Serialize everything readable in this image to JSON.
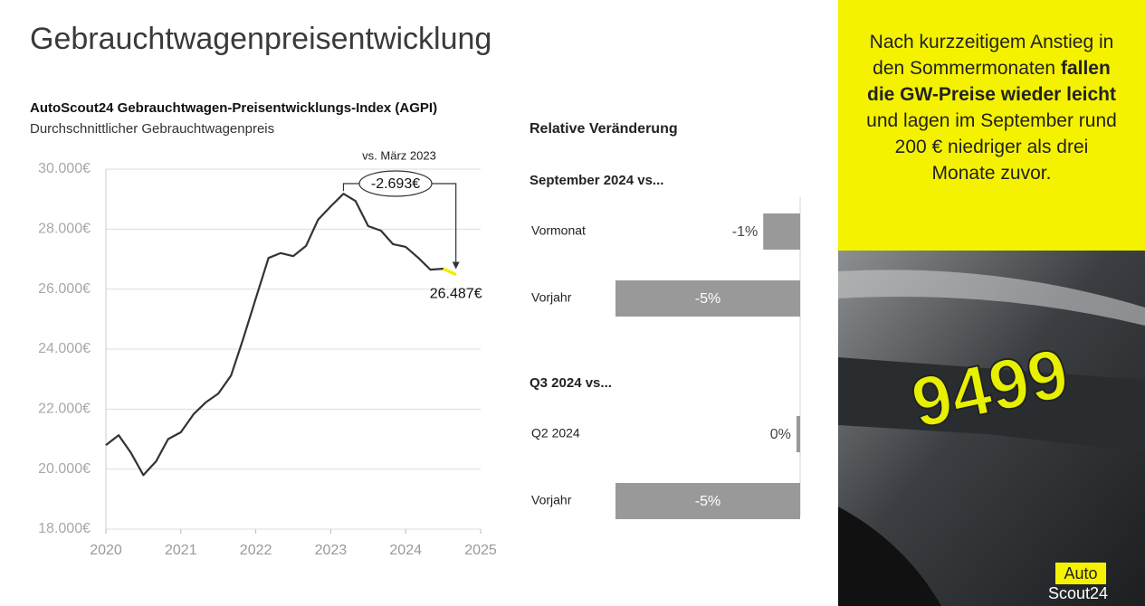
{
  "title": "Gebrauchtwagenpreisentwicklung",
  "chart_data": [
    {
      "type": "line",
      "title": "AutoScout24 Gebrauchtwagen-Preisentwicklungs-Index (AGPI)",
      "subtitle": "Durchschnittlicher Gebrauchtwagenpreis",
      "x": [
        2020.0,
        2020.17,
        2020.33,
        2020.5,
        2020.67,
        2020.83,
        2021.0,
        2021.17,
        2021.33,
        2021.5,
        2021.67,
        2021.83,
        2022.0,
        2022.17,
        2022.33,
        2022.5,
        2022.67,
        2022.83,
        2023.0,
        2023.17,
        2023.33,
        2023.5,
        2023.67,
        2023.83,
        2024.0,
        2024.17,
        2024.33,
        2024.5,
        2024.67
      ],
      "values": [
        20800,
        21130,
        20560,
        19800,
        20260,
        21000,
        21230,
        21830,
        22220,
        22520,
        23120,
        24330,
        25690,
        27040,
        27200,
        27100,
        27440,
        28310,
        28760,
        29180,
        28940,
        28100,
        27950,
        27500,
        27410,
        27040,
        26650,
        26680,
        26487
      ],
      "last_value_label": "26.487€",
      "color": "#333333",
      "highlight_color": "#f2ef00",
      "annotation": {
        "reference": "vs. März 2023",
        "change_label": "-2.693€"
      },
      "xlim": [
        2020,
        2025
      ],
      "xticks": [
        2020,
        2021,
        2022,
        2023,
        2024,
        2025
      ],
      "ylim": [
        18000,
        30000
      ],
      "yticks": [
        {
          "value": 18000,
          "label": "18.000€"
        },
        {
          "value": 20000,
          "label": "20.000€"
        },
        {
          "value": 22000,
          "label": "22.000€"
        },
        {
          "value": 24000,
          "label": "24.000€"
        },
        {
          "value": 26000,
          "label": "26.000€"
        },
        {
          "value": 28000,
          "label": "28.000€"
        },
        {
          "value": 30000,
          "label": "30.000€"
        }
      ],
      "grid": true
    },
    {
      "type": "bar",
      "orientation": "horizontal",
      "title": "Relative Veränderung",
      "color": "#999999",
      "xlim": [
        -5,
        0
      ],
      "groups": [
        {
          "title": "September 2024 vs...",
          "categories": [
            "Vormonat",
            "Vorjahr"
          ],
          "values": [
            -1,
            -5
          ],
          "value_labels": [
            "-1%",
            "-5%"
          ]
        },
        {
          "title": "Q3 2024 vs...",
          "categories": [
            "Q2 2024",
            "Vorjahr"
          ],
          "values": [
            -0.1,
            -5
          ],
          "value_labels": [
            "0%",
            "-5%"
          ]
        }
      ]
    }
  ],
  "sidebar": {
    "text": [
      "Nach kurzzeitigem Anstieg in den Sommermonaten ",
      "fallen die GW-Preise wieder leicht",
      " und lagen im September rund 200 € niedriger als drei Monate zuvor."
    ]
  },
  "photo": {
    "price_tag": "9499"
  },
  "logo": {
    "line1": "Auto",
    "line2": "Scout24"
  }
}
